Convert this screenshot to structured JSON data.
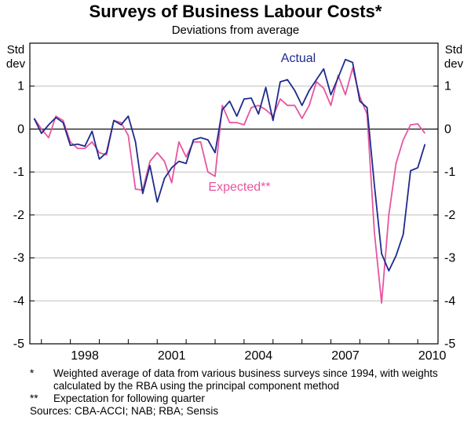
{
  "chart_data": {
    "type": "line",
    "title": "Surveys of Business Labour Costs*",
    "subtitle": "Deviations from average",
    "ylabel_left": [
      "Std",
      "dev"
    ],
    "ylabel_right": [
      "Std",
      "dev"
    ],
    "ylim": [
      -5,
      2
    ],
    "yticks": [
      1,
      0,
      -1,
      -2,
      -3,
      -4,
      -5
    ],
    "xlim": [
      1996.6,
      2010.7
    ],
    "xticks": [
      1998,
      2001,
      2004,
      2007,
      2010
    ],
    "series": [
      {
        "name": "Actual",
        "color": "#1f2a8c",
        "x": [
          1996.75,
          1997.0,
          1997.25,
          1997.5,
          1997.75,
          1998.0,
          1998.25,
          1998.5,
          1998.75,
          1999.0,
          1999.25,
          1999.5,
          1999.75,
          2000.0,
          2000.25,
          2000.5,
          2000.75,
          2001.0,
          2001.25,
          2001.5,
          2001.75,
          2002.0,
          2002.25,
          2002.5,
          2002.75,
          2003.0,
          2003.25,
          2003.5,
          2003.75,
          2004.0,
          2004.25,
          2004.5,
          2004.75,
          2005.0,
          2005.25,
          2005.5,
          2005.75,
          2006.0,
          2006.25,
          2006.5,
          2006.75,
          2007.0,
          2007.25,
          2007.5,
          2007.75,
          2008.0,
          2008.25,
          2008.5,
          2008.75,
          2009.0,
          2009.25,
          2009.5,
          2009.75,
          2010.0,
          2010.25
        ],
        "values": [
          0.25,
          -0.1,
          0.1,
          0.27,
          0.15,
          -0.38,
          -0.35,
          -0.4,
          -0.05,
          -0.7,
          -0.55,
          0.2,
          0.1,
          0.3,
          -0.3,
          -1.5,
          -0.85,
          -1.7,
          -1.15,
          -0.9,
          -0.75,
          -0.8,
          -0.25,
          -0.2,
          -0.25,
          -0.55,
          0.45,
          0.65,
          0.3,
          0.7,
          0.72,
          0.35,
          0.97,
          0.2,
          1.1,
          1.15,
          0.9,
          0.55,
          0.9,
          1.15,
          1.4,
          0.8,
          1.2,
          1.62,
          1.55,
          0.65,
          0.5,
          -1.3,
          -2.9,
          -3.3,
          -2.95,
          -2.45,
          -0.97,
          -0.9,
          -0.35
        ]
      },
      {
        "name": "Expected**",
        "color": "#e8559f",
        "x": [
          1996.75,
          1997.0,
          1997.25,
          1997.5,
          1997.75,
          1998.0,
          1998.25,
          1998.5,
          1998.75,
          1999.0,
          1999.25,
          1999.5,
          1999.75,
          2000.0,
          2000.25,
          2000.5,
          2000.75,
          2001.0,
          2001.25,
          2001.5,
          2001.75,
          2002.0,
          2002.25,
          2002.5,
          2002.75,
          2003.0,
          2003.25,
          2003.5,
          2003.75,
          2004.0,
          2004.25,
          2004.5,
          2004.75,
          2005.0,
          2005.25,
          2005.5,
          2005.75,
          2006.0,
          2006.25,
          2006.5,
          2006.75,
          2007.0,
          2007.25,
          2007.5,
          2007.75,
          2008.0,
          2008.25,
          2008.5,
          2008.75,
          2009.0,
          2009.25,
          2009.5,
          2009.75,
          2010.0,
          2010.25
        ],
        "values": [
          0.25,
          0.0,
          -0.2,
          0.3,
          0.2,
          -0.3,
          -0.45,
          -0.45,
          -0.3,
          -0.55,
          -0.6,
          0.2,
          0.15,
          -0.15,
          -1.4,
          -1.42,
          -0.75,
          -0.55,
          -0.75,
          -1.25,
          -0.3,
          -0.65,
          -0.3,
          -0.3,
          -1.0,
          -1.1,
          0.55,
          0.15,
          0.15,
          0.1,
          0.5,
          0.55,
          0.45,
          0.3,
          0.7,
          0.55,
          0.55,
          0.25,
          0.55,
          1.1,
          0.95,
          0.55,
          1.25,
          0.8,
          1.42,
          0.75,
          0.35,
          -2.4,
          -4.05,
          -2.0,
          -0.8,
          -0.25,
          0.1,
          0.12,
          -0.1
        ]
      }
    ],
    "annotations": [
      {
        "text": "Actual",
        "series": 0
      },
      {
        "text": "Expected**",
        "series": 1
      }
    ]
  },
  "footnotes": [
    {
      "mark": "*",
      "text": "Weighted average of data from various business surveys since 1994, with weights calculated by the RBA using the principal component method"
    },
    {
      "mark": "**",
      "text": "Expectation for following quarter"
    }
  ],
  "sources": "Sources: CBA-ACCI; NAB; RBA; Sensis"
}
